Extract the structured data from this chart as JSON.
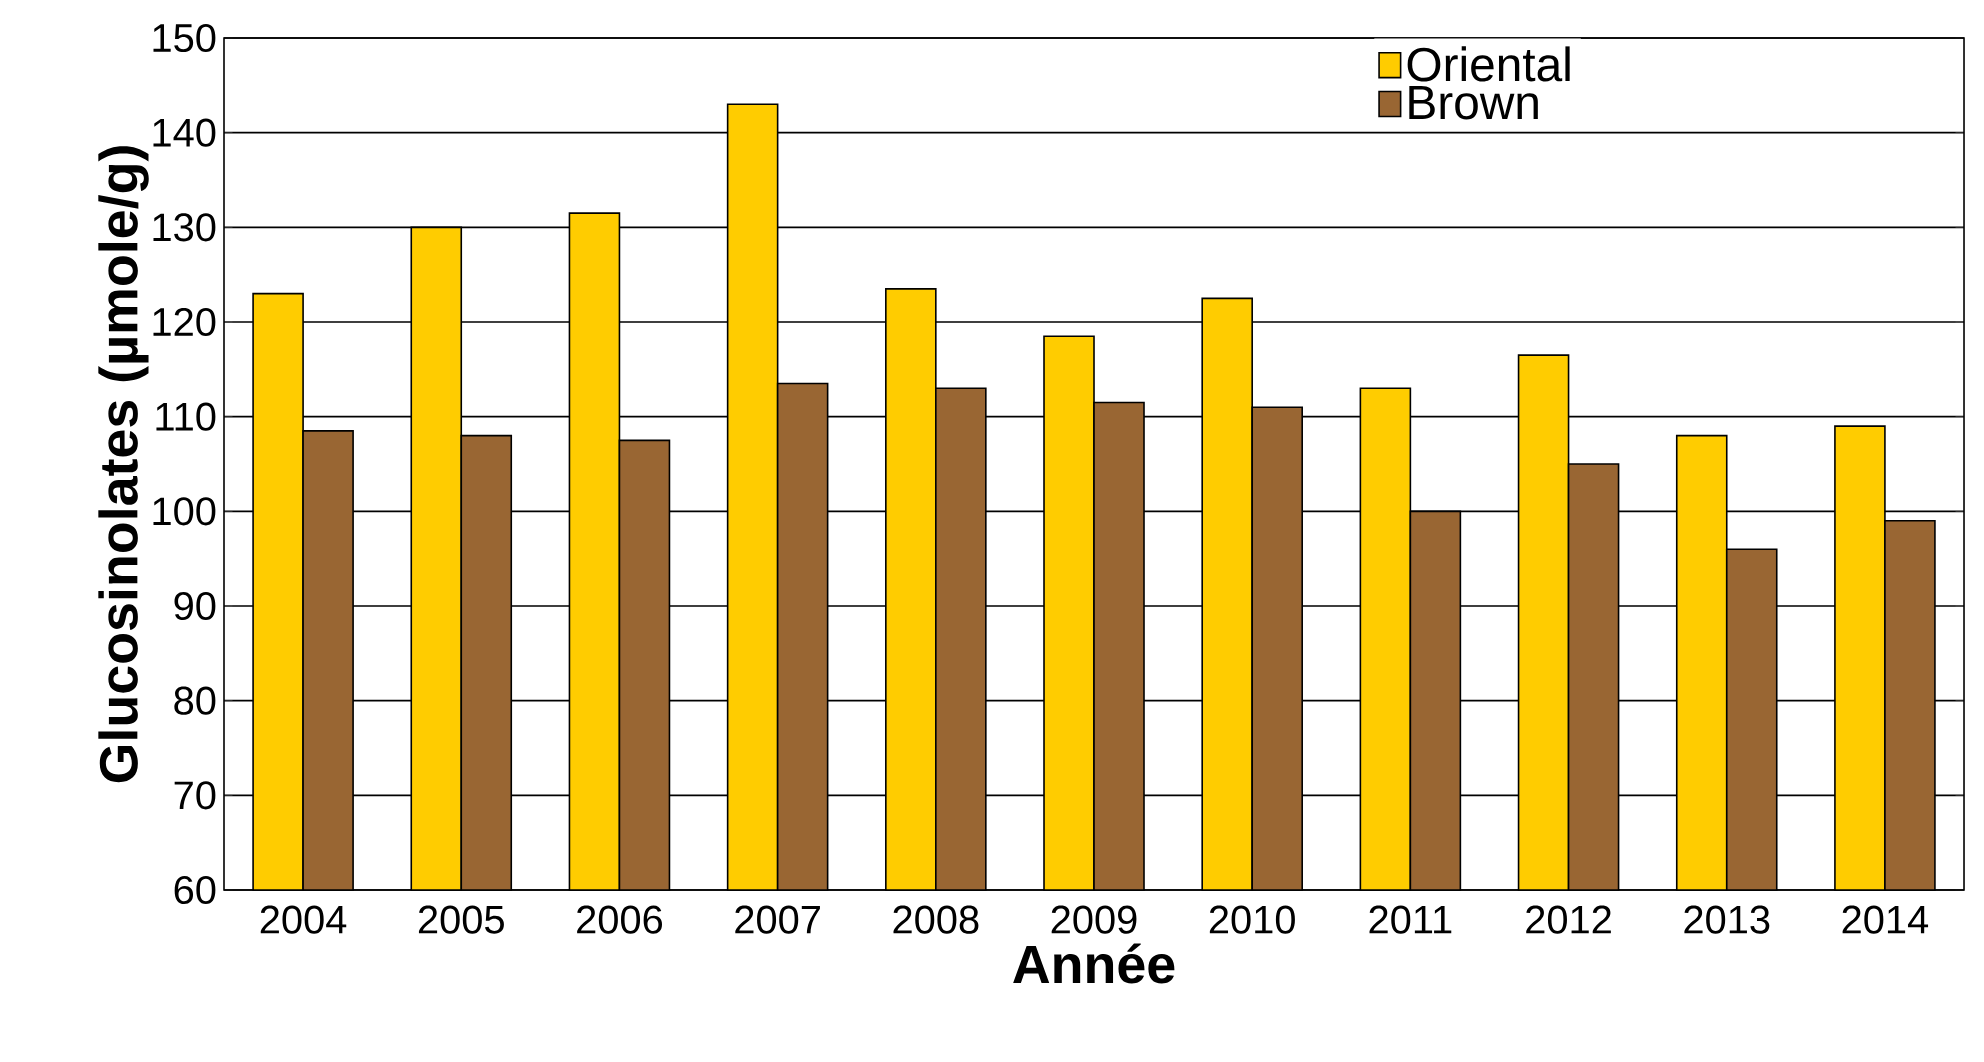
{
  "chart_data": {
    "type": "bar",
    "xlabel": "Année",
    "ylabel": "Glucosinolates (µmole/g)",
    "categories": [
      "2004",
      "2005",
      "2006",
      "2007",
      "2008",
      "2009",
      "2010",
      "2011",
      "2012",
      "2013",
      "2014"
    ],
    "series": [
      {
        "name": "Oriental",
        "color": "#ffcc00",
        "values": [
          123,
          130,
          131.5,
          143,
          123.5,
          118.5,
          122.5,
          113,
          116.5,
          108,
          109
        ]
      },
      {
        "name": "Brown",
        "color": "#996633",
        "values": [
          108.5,
          108,
          107.5,
          113.5,
          113,
          111.5,
          111,
          100,
          105,
          96,
          99
        ]
      }
    ],
    "ylim": [
      60,
      150
    ],
    "yticks": [
      60,
      70,
      80,
      90,
      100,
      110,
      120,
      130,
      140,
      150
    ],
    "grid": "y",
    "legend": "top right"
  }
}
